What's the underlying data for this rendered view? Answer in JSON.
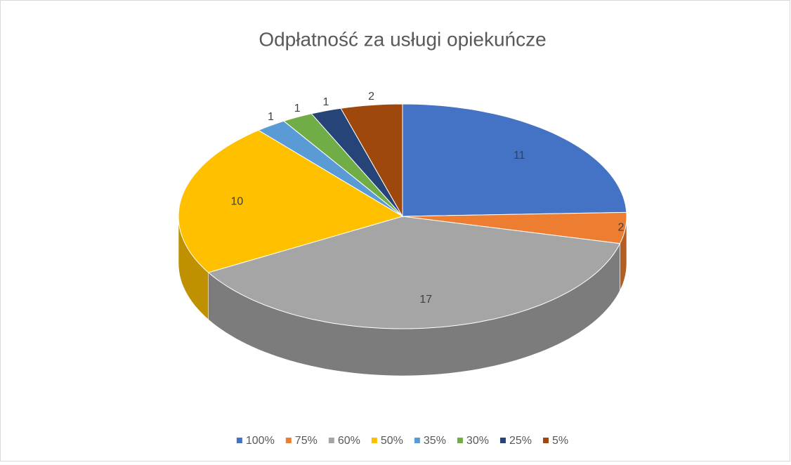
{
  "chart_data": {
    "type": "pie3d",
    "title": "Odpłatność za usługi opiekuńcze",
    "categories": [
      "100%",
      "75%",
      "60%",
      "50%",
      "35%",
      "30%",
      "25%",
      "5%"
    ],
    "values": [
      11,
      2,
      17,
      10,
      1,
      1,
      1,
      2
    ],
    "colors": [
      "#4472c4",
      "#ed7d31",
      "#a5a5a5",
      "#ffc000",
      "#5b9bd5",
      "#70ad47",
      "#264478",
      "#9e480e"
    ],
    "legend": "bottom"
  }
}
